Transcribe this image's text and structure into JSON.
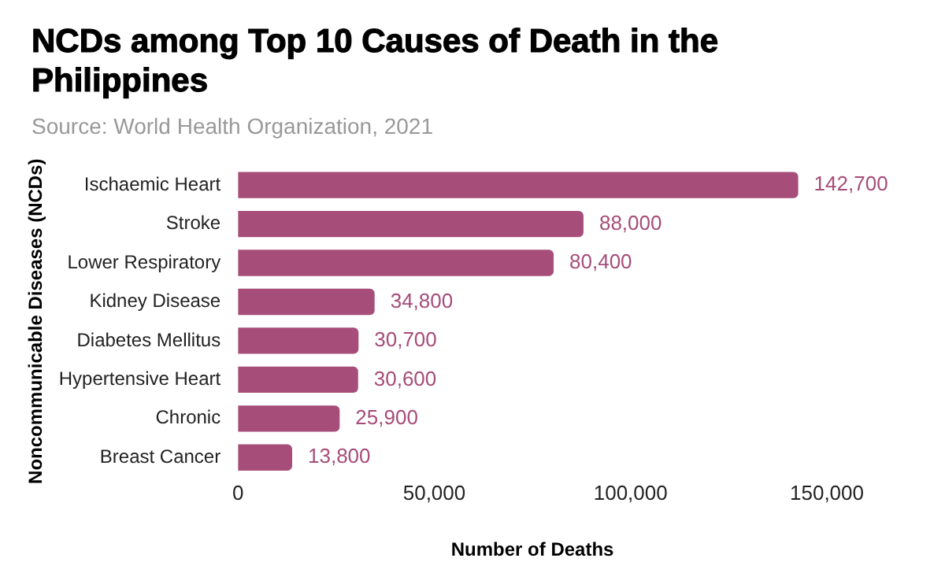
{
  "chart_data": {
    "type": "bar",
    "orientation": "horizontal",
    "title": "NCDs among Top 10 Causes of Death in the Philippines",
    "subtitle": "Source: World Health Organization, 2021",
    "xlabel": "Number of Deaths",
    "ylabel": "Noncommunicable Diseases (NCDs)",
    "categories": [
      "Ischaemic Heart",
      "Stroke",
      "Lower Respiratory",
      "Kidney Disease",
      "Diabetes Mellitus",
      "Hypertensive Heart",
      "Chronic",
      "Breast Cancer"
    ],
    "values": [
      142700,
      88000,
      80400,
      34800,
      30700,
      30600,
      25900,
      13800
    ],
    "value_labels": [
      "142,700",
      "88,000",
      "80,400",
      "34,800",
      "30,700",
      "30,600",
      "25,900",
      "13,800"
    ],
    "color": "#a64d79",
    "xlim": [
      0,
      150000
    ],
    "xticks": [
      0,
      {
        "value": 50000,
        "label": "50,000"
      },
      {
        "value": 100000,
        "label": "100,000"
      },
      {
        "value": 150000,
        "label": "150,000"
      }
    ],
    "grid": false,
    "legend": false
  }
}
